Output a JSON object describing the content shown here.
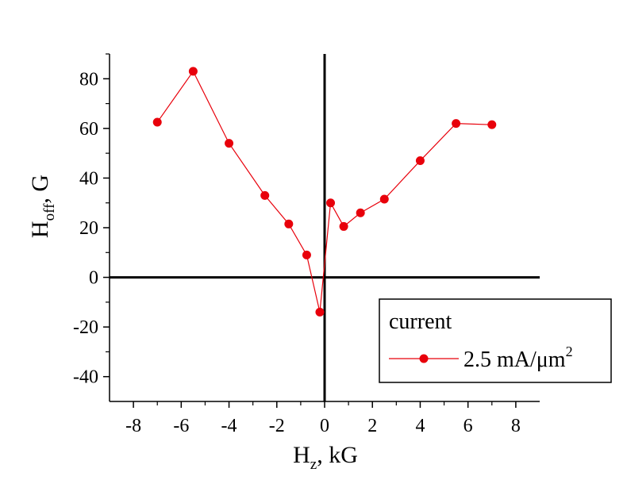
{
  "chart_data": {
    "type": "line",
    "xlabel": {
      "main": "H",
      "sub": "z",
      "suffix": ", kG"
    },
    "ylabel": {
      "main": "H",
      "sub": "off",
      "suffix": ", G"
    },
    "xlim": [
      -9,
      9
    ],
    "ylim": [
      -50,
      90
    ],
    "x_ticks": [
      -8,
      -6,
      -4,
      -2,
      0,
      2,
      4,
      6,
      8
    ],
    "y_ticks": [
      -40,
      -20,
      0,
      20,
      40,
      60,
      80
    ],
    "grid": false,
    "zero_lines": true,
    "legend": {
      "title": "current",
      "position": "bottom-right",
      "entry": {
        "main": "2.5 mA/μm",
        "sup": "2"
      }
    },
    "series": [
      {
        "color": "#e8000b",
        "marker": "circle",
        "x": [
          -7,
          -5.5,
          -4,
          -2.5,
          -1.5,
          -0.75,
          -0.2,
          0.25,
          0.8,
          1.5,
          2.5,
          4,
          5.5,
          7
        ],
        "y": [
          62.5,
          83,
          54,
          33,
          21.5,
          9,
          -14,
          30,
          20.5,
          26,
          31.5,
          47,
          62,
          61.5
        ]
      }
    ]
  }
}
